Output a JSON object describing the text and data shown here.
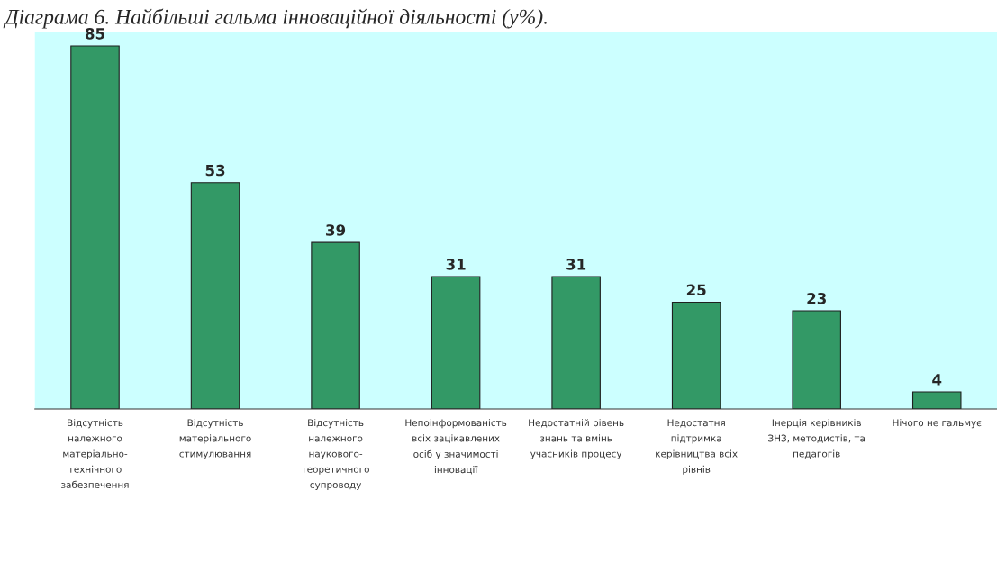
{
  "chart_data": {
    "type": "bar",
    "title": "Діаграма 6. Найбільші гальма інноваційної діяльності (у%).",
    "categories": [
      "Відсутність\nналежного\nматеріально-\nтехнічного\nзабезпечення",
      "Відсутність\nматеріального\nстимулювання",
      "Відсутність\nналежного\nнаукового-\nтеоретичного\nсупроводу",
      "Непоінформованість\nвсіх зацікавлених\nосіб у значимості\nінновації",
      "Недостатній рівень\nзнань та вмінь\nучасників процесу",
      "Недостатня\nпідтримка\nкерівництва всіх\nрівнів",
      "Інерція керівників\nЗНЗ, методистів, та\nпедагогів",
      "Нічого не гальмує"
    ],
    "values": [
      85,
      53,
      39,
      31,
      31,
      25,
      23,
      4
    ],
    "color": "#339966",
    "data_labels": true,
    "grid": false,
    "legend": false
  }
}
